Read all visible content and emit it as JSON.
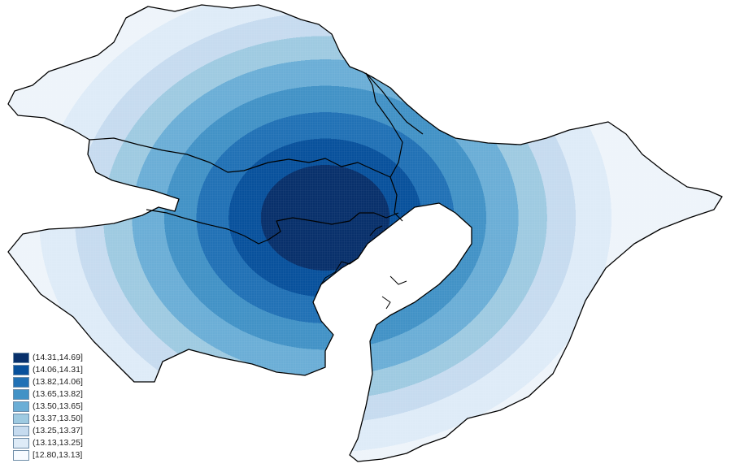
{
  "legend": {
    "items": [
      {
        "label": "(14.31,14.69]",
        "color": "#08306b"
      },
      {
        "label": "(14.06,14.31]",
        "color": "#08519c"
      },
      {
        "label": "(13.82,14.06]",
        "color": "#2171b5"
      },
      {
        "label": "(13.65,13.82]",
        "color": "#4292c6"
      },
      {
        "label": "(13.50,13.65]",
        "color": "#6baed6"
      },
      {
        "label": "(13.37,13.50]",
        "color": "#9ecae1"
      },
      {
        "label": "(13.25,13.37]",
        "color": "#c6dbef"
      },
      {
        "label": "(13.13,13.25]",
        "color": "#deebf7"
      },
      {
        "label": "[12.80,13.13]",
        "color": "#f7fbff"
      }
    ]
  },
  "map": {
    "kind": "choropleth",
    "region_boundary_color": "#000000",
    "water_color": "#ffffff"
  }
}
